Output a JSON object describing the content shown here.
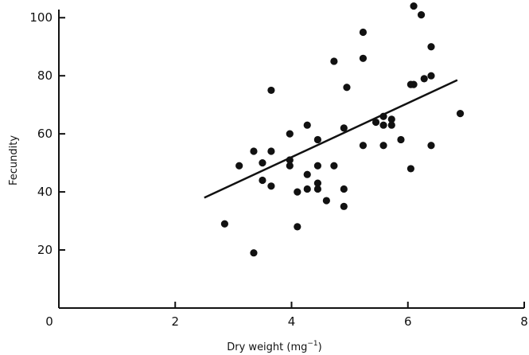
{
  "chart_data": {
    "type": "scatter",
    "title": "",
    "xlabel": "Dry weight (mg",
    "xlabel_sup": "−1",
    "xlabel_close": ")",
    "ylabel": "Fecundity",
    "xlim": [
      0,
      8
    ],
    "ylim": [
      0,
      105
    ],
    "xticks": [
      0,
      2,
      4,
      6,
      8
    ],
    "xtick_labels": [
      "0",
      "2",
      "4",
      "6",
      "8"
    ],
    "yticks": [
      20,
      40,
      60,
      80,
      100
    ],
    "ytick_labels": [
      "20",
      "40",
      "60",
      "80",
      "100"
    ],
    "grid": false,
    "legend": "none",
    "point_color": "#111111",
    "points": [
      [
        2.85,
        29
      ],
      [
        3.1,
        49
      ],
      [
        3.35,
        54
      ],
      [
        3.35,
        19
      ],
      [
        3.5,
        50
      ],
      [
        3.5,
        44
      ],
      [
        3.65,
        75
      ],
      [
        3.65,
        42
      ],
      [
        3.65,
        54
      ],
      [
        3.97,
        60
      ],
      [
        3.97,
        51
      ],
      [
        3.97,
        49
      ],
      [
        4.1,
        40
      ],
      [
        4.1,
        28
      ],
      [
        4.27,
        63
      ],
      [
        4.27,
        46
      ],
      [
        4.27,
        41
      ],
      [
        4.45,
        58
      ],
      [
        4.45,
        49
      ],
      [
        4.45,
        43
      ],
      [
        4.45,
        41
      ],
      [
        4.6,
        37
      ],
      [
        4.73,
        85
      ],
      [
        4.73,
        49
      ],
      [
        4.9,
        62
      ],
      [
        4.9,
        41
      ],
      [
        4.9,
        35
      ],
      [
        4.95,
        76
      ],
      [
        5.23,
        95
      ],
      [
        5.23,
        86
      ],
      [
        5.23,
        56
      ],
      [
        5.45,
        64
      ],
      [
        5.58,
        66
      ],
      [
        5.58,
        63
      ],
      [
        5.58,
        56
      ],
      [
        5.72,
        65
      ],
      [
        5.72,
        63
      ],
      [
        5.88,
        58
      ],
      [
        6.05,
        77
      ],
      [
        6.05,
        48
      ],
      [
        6.1,
        104
      ],
      [
        6.1,
        77
      ],
      [
        6.23,
        101
      ],
      [
        6.28,
        79
      ],
      [
        6.4,
        90
      ],
      [
        6.4,
        80
      ],
      [
        6.4,
        56
      ],
      [
        6.9,
        67
      ]
    ],
    "regression_line": {
      "x": [
        2.5,
        6.85
      ],
      "y": [
        38,
        78.5
      ]
    }
  }
}
